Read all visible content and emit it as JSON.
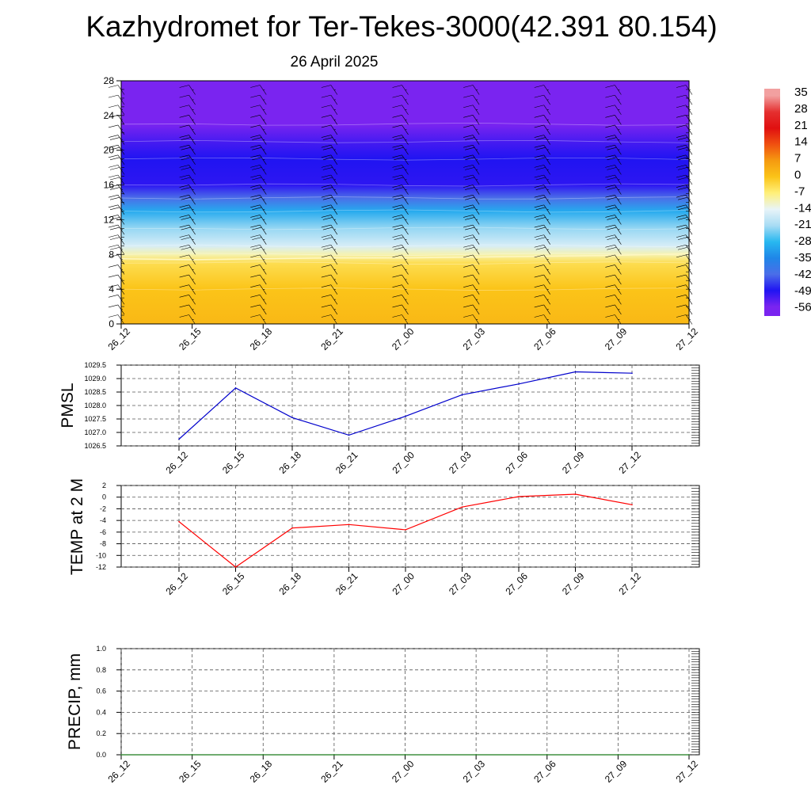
{
  "header": {
    "title": "Kazhydromet for Ter-Tekes-3000(42.391 80.154)",
    "subtitle": "26 April 2025"
  },
  "time_labels": [
    "26_12",
    "26_15",
    "26_18",
    "26_21",
    "27_00",
    "27_03",
    "27_06",
    "27_09",
    "27_12"
  ],
  "colorbar": {
    "labels": [
      "35",
      "28",
      "21",
      "14",
      "7",
      "0",
      "-7",
      "-14",
      "-21",
      "-28",
      "-35",
      "-42",
      "-49",
      "-56"
    ],
    "stops": [
      {
        "v": 35,
        "color": "#f2a0a0"
      },
      {
        "v": 28,
        "color": "#e53030"
      },
      {
        "v": 21,
        "color": "#e01010"
      },
      {
        "v": 14,
        "color": "#f05010"
      },
      {
        "v": 7,
        "color": "#f59a10"
      },
      {
        "v": 0,
        "color": "#fbc418"
      },
      {
        "v": -7,
        "color": "#fff07a"
      },
      {
        "v": -14,
        "color": "#e8f4f8"
      },
      {
        "v": -21,
        "color": "#a8dcf4"
      },
      {
        "v": -28,
        "color": "#28b8f0"
      },
      {
        "v": -35,
        "color": "#1f86e8"
      },
      {
        "v": -42,
        "color": "#4b6ee8"
      },
      {
        "v": -49,
        "color": "#2014f2"
      },
      {
        "v": -56,
        "color": "#7a24f0"
      }
    ]
  },
  "chart_data": [
    {
      "type": "heatmap",
      "panel": "cross-section",
      "x": [
        "26_12",
        "26_15",
        "26_18",
        "26_21",
        "27_00",
        "27_03",
        "27_06",
        "27_09",
        "27_12"
      ],
      "ylim": [
        0,
        28
      ],
      "yticks": [
        0,
        4,
        8,
        12,
        16,
        20,
        24,
        28
      ],
      "temperature_profile": [
        {
          "height": 0,
          "temp": 2
        },
        {
          "height": 4,
          "temp": 0
        },
        {
          "height": 7,
          "temp": -4
        },
        {
          "height": 8,
          "temp": -10
        },
        {
          "height": 9,
          "temp": -16
        },
        {
          "height": 11,
          "temp": -22
        },
        {
          "height": 13,
          "temp": -30
        },
        {
          "height": 14.5,
          "temp": -42
        },
        {
          "height": 16,
          "temp": -50
        },
        {
          "height": 19,
          "temp": -49
        },
        {
          "height": 21,
          "temp": -52
        },
        {
          "height": 23,
          "temp": -57
        },
        {
          "height": 28,
          "temp": -60
        }
      ],
      "freezing_level": [
        7.5,
        7.4,
        7.5,
        7.6,
        7.6,
        7.7,
        7.8,
        7.9,
        8.1
      ]
    },
    {
      "type": "line",
      "panel": "pmsl",
      "ylabel": "PMSL",
      "ylim": [
        1026.5,
        1029.5
      ],
      "yticks": [
        "1026.5",
        "1027.0",
        "1027.5",
        "1028.0",
        "1028.5",
        "1029.0",
        "1029.5"
      ],
      "x": [
        "26_12",
        "26_15",
        "26_18",
        "26_21",
        "27_00",
        "27_03",
        "27_06",
        "27_09",
        "27_12"
      ],
      "series": [
        {
          "values": [
            1026.75,
            1028.65,
            1027.55,
            1026.9,
            1027.6,
            1028.4,
            1028.8,
            1029.25,
            1029.2
          ],
          "color": "#0000cc"
        }
      ]
    },
    {
      "type": "line",
      "panel": "temp2m",
      "ylabel": "TEMP at 2 M",
      "ylim": [
        -12,
        2
      ],
      "yticks": [
        "2",
        "0",
        "-2",
        "-4",
        "-6",
        "-8",
        "-10",
        "-12"
      ],
      "x": [
        "26_12",
        "26_15",
        "26_18",
        "26_21",
        "27_00",
        "27_03",
        "27_06",
        "27_09",
        "27_12"
      ],
      "series": [
        {
          "values": [
            -4.2,
            -12.0,
            -5.3,
            -4.7,
            -5.6,
            -1.7,
            0.1,
            0.5,
            -1.3
          ],
          "color": "#ff0000"
        }
      ]
    },
    {
      "type": "line",
      "panel": "precip",
      "ylabel": "PRECIP, mm",
      "ylim": [
        0.0,
        1.0
      ],
      "yticks": [
        "0.0",
        "0.2",
        "0.4",
        "0.6",
        "0.8",
        "1.0"
      ],
      "x": [
        "26_12",
        "26_15",
        "26_18",
        "26_21",
        "27_00",
        "27_03",
        "27_06",
        "27_09",
        "27_12"
      ],
      "series": [
        {
          "values": [
            0,
            0,
            0,
            0,
            0,
            0,
            0,
            0,
            0
          ],
          "color": "#1a7a1a"
        }
      ]
    }
  ]
}
